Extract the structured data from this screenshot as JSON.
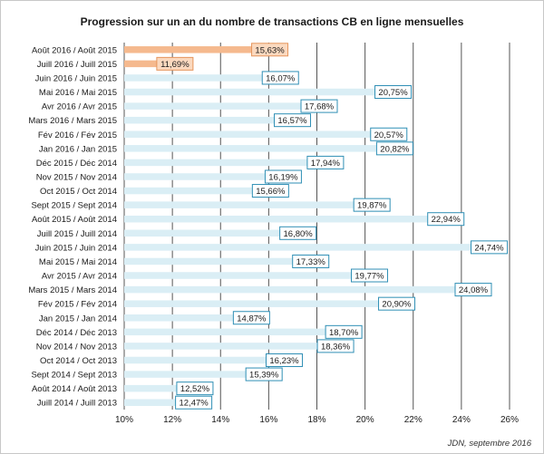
{
  "chart_data": {
    "type": "bar",
    "orientation": "horizontal",
    "title": "Progression sur un an du nombre de transactions CB en ligne mensuelles",
    "source": "JDN, septembre 2016",
    "xlim": [
      10,
      26
    ],
    "xticks": [
      "10%",
      "12%",
      "14%",
      "16%",
      "18%",
      "20%",
      "22%",
      "24%",
      "26%"
    ],
    "grid": "vertical",
    "categories": [
      "Août 2016 / Août 2015",
      "Juill 2016 / Juill 2015",
      "Juin 2016 / Juin 2015",
      "Mai 2016 / Mai 2015",
      "Avr 2016 / Avr 2015",
      "Mars 2016 / Mars 2015",
      "Fév 2016 / Fév 2015",
      "Jan 2016 / Jan 2015",
      "Déc 2015 / Déc 2014",
      "Nov 2015 / Nov 2014",
      "Oct 2015 / Oct 2014",
      "Sept 2015 / Sept 2014",
      "Août 2015 / Août 2014",
      "Juill 2015 / Juill 2014",
      "Juin 2015 / Juin 2014",
      "Mai 2015 / Mai 2014",
      "Avr 2015 / Avr 2014",
      "Mars 2015 / Mars 2014",
      "Fév 2015 / Fév 2014",
      "Jan 2015 / Jan 2014",
      "Déc 2014 / Déc 2013",
      "Nov 2014 / Nov 2013",
      "Oct 2014 / Oct 2013",
      "Sept 2014 / Sept 2013",
      "Août 2014 / Août 2013",
      "Juill 2014 / Juill 2013"
    ],
    "values": [
      15.63,
      11.69,
      16.07,
      20.75,
      17.68,
      16.57,
      20.57,
      20.82,
      17.94,
      16.19,
      15.66,
      19.87,
      22.94,
      16.8,
      24.74,
      17.33,
      19.77,
      24.08,
      20.9,
      14.87,
      18.7,
      18.36,
      16.23,
      15.39,
      12.52,
      12.47
    ],
    "labels": [
      "15,63%",
      "11,69%",
      "16,07%",
      "20,75%",
      "17,68%",
      "16,57%",
      "20,57%",
      "20,82%",
      "17,94%",
      "16,19%",
      "15,66%",
      "19,87%",
      "22,94%",
      "16,80%",
      "24,74%",
      "17,33%",
      "19,77%",
      "24,08%",
      "20,90%",
      "14,87%",
      "18,70%",
      "18,36%",
      "16,23%",
      "15,39%",
      "12,52%",
      "12,47%"
    ],
    "highlight_count": 2,
    "colors": {
      "highlight_bar": "#f5b98e",
      "highlight_label_bg": "#fbd9bf",
      "highlight_label_border": "#e6955c",
      "bar": "#daeef5",
      "label_bg": "#ffffff",
      "label_border": "#2f8fb5",
      "grid": "#555555"
    }
  }
}
